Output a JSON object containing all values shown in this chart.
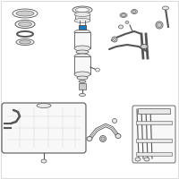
{
  "bg_color": "#ffffff",
  "border_color": "#dddddd",
  "oc": "#555555",
  "oc2": "#777777",
  "fc_light": "#e8e8e8",
  "fc_mid": "#cccccc",
  "fc_dark": "#aaaaaa",
  "fc_white": "#f8f8f8",
  "blue": "#1a7abf",
  "figsize": [
    2.0,
    2.0
  ],
  "dpi": 100
}
